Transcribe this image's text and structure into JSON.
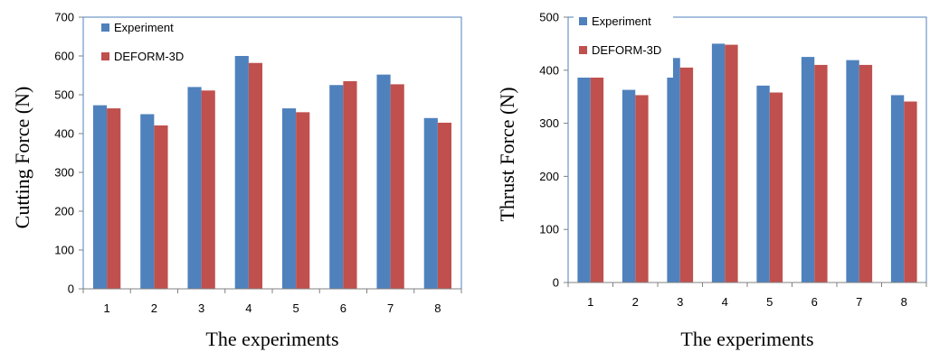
{
  "chart_data": [
    {
      "type": "bar",
      "title": "",
      "xlabel": "The experiments",
      "ylabel": "Cutting Force (N)",
      "categories": [
        "1",
        "2",
        "3",
        "4",
        "5",
        "6",
        "7",
        "8"
      ],
      "ylim": [
        0,
        700
      ],
      "yticks": [
        0,
        100,
        200,
        300,
        400,
        500,
        600,
        700
      ],
      "grid": false,
      "legend_position": "top-left",
      "series": [
        {
          "name": "Experiment",
          "color": "#4F81BD",
          "values": [
            473,
            450,
            520,
            600,
            465,
            525,
            552,
            440
          ]
        },
        {
          "name": "DEFORM-3D",
          "color": "#C0504D",
          "values": [
            465,
            421,
            511,
            582,
            455,
            535,
            527,
            428
          ]
        }
      ]
    },
    {
      "type": "bar",
      "title": "",
      "xlabel": "The experiments",
      "ylabel": "Thrust Force (N)",
      "categories": [
        "1",
        "2",
        "3",
        "4",
        "5",
        "6",
        "7",
        "8"
      ],
      "ylim": [
        0,
        500
      ],
      "yticks": [
        0,
        100,
        200,
        300,
        400,
        500
      ],
      "grid": false,
      "legend_position": "top-left",
      "series": [
        {
          "name": "Experiment",
          "color": "#4F81BD",
          "values": [
            402,
            363,
            423,
            450,
            371,
            425,
            419,
            353
          ]
        },
        {
          "name": "DEFORM-3D",
          "color": "#C0504D",
          "values": [
            387,
            353,
            405,
            448,
            358,
            410,
            410,
            341
          ]
        }
      ]
    }
  ]
}
